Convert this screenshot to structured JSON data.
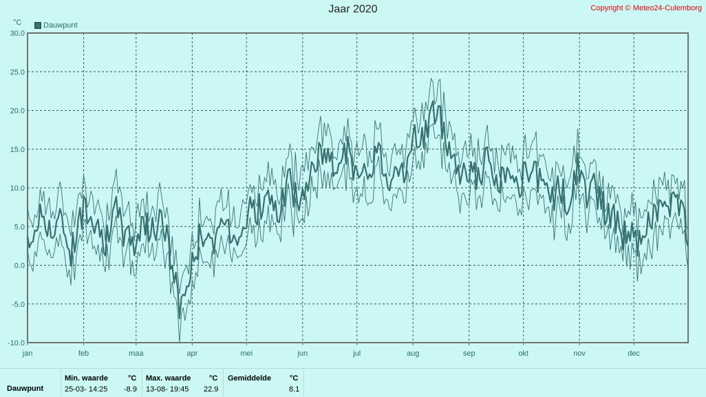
{
  "title": "Jaar 2020",
  "copyright": "Copyright © Meteo24-Culemborg",
  "unit": "°C",
  "legend_label": "Dauwpunt",
  "colors": {
    "background": "#cbf8f5",
    "series": "#367070",
    "grid": "#3a5050",
    "axis": "#707070",
    "title_red": "#e00000"
  },
  "stats": {
    "row_label": "Dauwpunt",
    "min_header": "Min. waarde",
    "min_unit": "°C",
    "min_time": "25-03-  14:25",
    "min_value": "-8.9",
    "max_header": "Max. waarde",
    "max_unit": "°C",
    "max_time": "13-08-  19:45",
    "max_value": "22.9",
    "avg_header": "Gemiddelde",
    "avg_unit": "°C",
    "avg_value": "8.1"
  },
  "chart_data": {
    "type": "line",
    "title": "Jaar 2020",
    "ylabel": "°C",
    "ylim": [
      -10,
      30
    ],
    "yticks": [
      "30.0",
      "25.0",
      "20.0",
      "15.0",
      "10.0",
      "5.0",
      "0.0",
      "-5.0",
      "-10.0"
    ],
    "xlim": [
      1,
      366
    ],
    "month_labels": [
      "jan",
      "feb",
      "maa",
      "apr",
      "mei",
      "jun",
      "jul",
      "aug",
      "sep",
      "okt",
      "nov",
      "dec"
    ],
    "month_starts": [
      1,
      32,
      61,
      92,
      122,
      153,
      183,
      214,
      245,
      275,
      306,
      336
    ],
    "grid": true,
    "series": [
      {
        "name": "Dauwpunt",
        "x": [
          1,
          5,
          10,
          15,
          20,
          25,
          30,
          35,
          40,
          45,
          50,
          55,
          60,
          65,
          70,
          75,
          80,
          85,
          90,
          95,
          100,
          105,
          110,
          115,
          120,
          125,
          130,
          135,
          140,
          145,
          150,
          155,
          160,
          165,
          170,
          175,
          180,
          185,
          190,
          195,
          200,
          205,
          210,
          215,
          220,
          225,
          230,
          235,
          240,
          245,
          250,
          255,
          260,
          265,
          270,
          275,
          280,
          285,
          290,
          295,
          300,
          305,
          310,
          315,
          320,
          325,
          330,
          335,
          340,
          345,
          350,
          355,
          360,
          366
        ],
        "y": [
          2,
          5,
          7,
          4,
          6,
          2,
          6,
          8,
          5,
          3,
          7,
          4,
          3,
          6,
          4,
          7,
          1,
          -5,
          -2,
          3,
          5,
          2,
          6,
          4,
          5,
          8,
          7,
          9,
          6,
          11,
          8,
          10,
          13,
          15,
          12,
          16,
          14,
          10,
          13,
          15,
          11,
          14,
          12,
          16,
          17,
          20,
          18,
          15,
          12,
          13,
          11,
          14,
          10,
          12,
          9,
          11,
          12,
          10,
          8,
          11,
          7,
          13,
          9,
          10,
          7,
          6,
          4,
          5,
          2,
          6,
          8,
          7,
          9,
          3
        ]
      }
    ]
  }
}
